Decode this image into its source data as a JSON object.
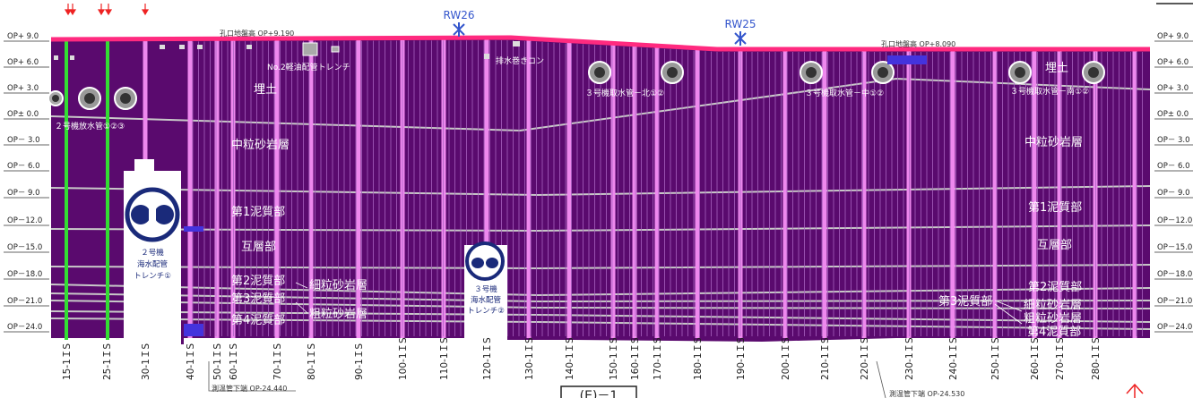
{
  "ground_labels": {
    "left_surface": "孔口地盤高 OP+9.190",
    "right_surface": "孔口地盤高 OP+8.090"
  },
  "pipe_labels": {
    "trench_no2_oil": "No.2軽油配管トレンチ",
    "drain_concrete": "排水巻きコン",
    "unit2_discharge": "２号機放水管①②③",
    "unit3_intake_north": "３号機取水管－北①②",
    "unit3_intake_center": "３号機取水管－中①②",
    "unit3_intake_south": "３号機取水管－南①②",
    "bottom_left_pipe": "測温管下端 OP-24.440",
    "bottom_right_pipe": "測温管下端 OP-24.530"
  },
  "layers": {
    "fill_left": "埋土",
    "fill_right": "埋土",
    "sand_mid_left": "中粒砂岩層",
    "sand_mid_right": "中粒砂岩層",
    "mud1_left": "第1泥質部",
    "mud1_right": "第1泥質部",
    "alt_left": "互層部",
    "alt_right": "互層部",
    "mud2_left": "第2泥質部",
    "mud2_right": "第2泥質部",
    "mud3_left": "第3泥質部",
    "mud3_right": "第3泥質部",
    "mud4_left": "第4泥質部",
    "mud4_right": "第4泥質部",
    "fine_sand_left": "細粒砂岩層",
    "fine_sand_right": "細粒砂岩層",
    "coarse_sand_left": "粗粒砂岩層",
    "coarse_sand_right": "粗粒砂岩層"
  },
  "trenches": {
    "unit2": {
      "line1": "２号機",
      "line2": "海水配管",
      "line3": "トレンチ①"
    },
    "unit3": {
      "line1": "３号機",
      "line2": "海水配管",
      "line3": "トレンチ②"
    }
  },
  "rw_markers": [
    "RW26",
    "RW25"
  ],
  "elevations": [
    "OP+ 9.0",
    "OP+ 6.0",
    "OP+ 3.0",
    "OP± 0.0",
    "OP－ 3.0",
    "OP－ 6.0",
    "OP－ 9.0",
    "OP－12.0",
    "OP－15.0",
    "OP－18.0",
    "OP－21.0",
    "OP－24.0"
  ],
  "elevations_right": [
    "OP+ 9.0",
    "OP+ 6.0",
    "OP+ 3.0",
    "OP± 0.0",
    "OP－ 3.0",
    "OP－ 6.0",
    "OP－ 9.0",
    "OP－12.0",
    "OP－15.0",
    "OP－18.0",
    "OP－21.0",
    "OP－24.0"
  ],
  "boreholes": [
    "15-1ＩS",
    "25-1ＩS",
    "30-1ＩS",
    "40-1ＩS",
    "50-1ＩS",
    "60-1ＩS",
    "70-1ＩS",
    "80-1ＩS",
    "90-1ＩS",
    "100-1ＩS",
    "110-1ＩS",
    "120-1ＩS",
    "130-1ＩS",
    "140-1ＩS",
    "150-1ＩS",
    "160-1ＩS",
    "170-1ＩS",
    "180-1ＩS",
    "190-1ＩS",
    "200-1ＩS",
    "210-1ＩS",
    "220-1ＩS",
    "230-1ＩS",
    "240-1ＩS",
    "250-1ＩS",
    "260-1ＩS",
    "270-1ＩS",
    "280-1ＩS"
  ],
  "section_label": "(E)－1",
  "colors": {
    "soil": "#5a0a6e",
    "surface": "#ff2a7f",
    "pile": "#ee88ee",
    "green_pile": "#33dd33",
    "layer_line": "#c8c8c8"
  }
}
